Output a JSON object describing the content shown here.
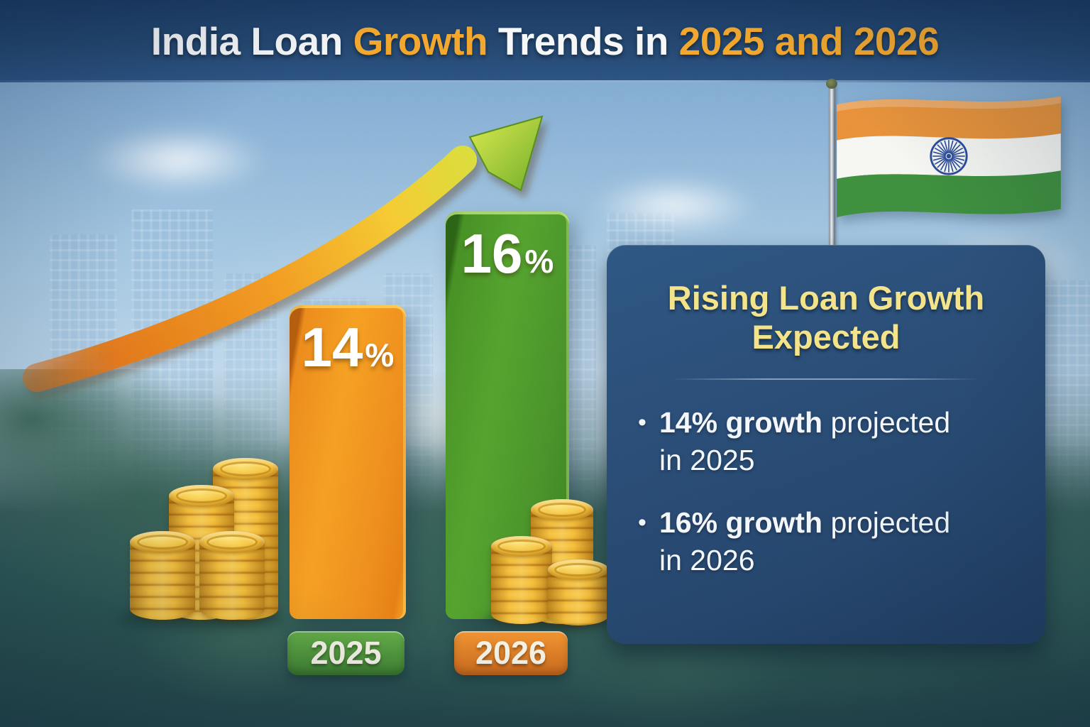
{
  "title": {
    "part1": "India Loan ",
    "part2": "Growth",
    "part3": " Trends in ",
    "part4": "2025 and 2026"
  },
  "chart_data": {
    "type": "bar",
    "title": "India Loan Growth Trends in 2025 and 2026",
    "categories": [
      "2025",
      "2026"
    ],
    "values": [
      14,
      16
    ],
    "unit": "%",
    "data_labels": [
      "14%",
      "16%"
    ],
    "bar_colors": [
      "#ee8c1d",
      "#54a22e"
    ],
    "badge_colors": [
      "#4f9a3e",
      "#e07f26"
    ],
    "ylim": [
      0,
      20
    ],
    "legend": "none",
    "grid": "off"
  },
  "bars": [
    {
      "value": "14",
      "suffix": "%",
      "year": "2025"
    },
    {
      "value": "16",
      "suffix": "%",
      "year": "2026"
    }
  ],
  "panel": {
    "heading_line1": "Rising Loan Growth",
    "heading_line2": "Expected",
    "bullet_glyph": "•",
    "bullets": [
      {
        "bold": "14% growth",
        "normal": " projected",
        "line2": "in 2025"
      },
      {
        "bold": "16% growth",
        "normal": " projected",
        "line2": "in 2026"
      }
    ]
  },
  "decor": {
    "arrow_icon": "growth-arrow-up-right",
    "coin_icon": "gold-coin-stacks",
    "flag_icon": "india-flag",
    "background": "city-skyline-and-forest"
  },
  "colors": {
    "title_white": "#f5f7f9",
    "title_orange": "#f2a62e",
    "panel_bg": "#284a72",
    "panel_heading": "#f3e388",
    "flag_saffron": "#E8913A",
    "flag_white": "#F6F7F3",
    "flag_green": "#3E8E3E",
    "chakra_blue": "#2A4B9B",
    "coin_gold": "#f5c33c"
  }
}
